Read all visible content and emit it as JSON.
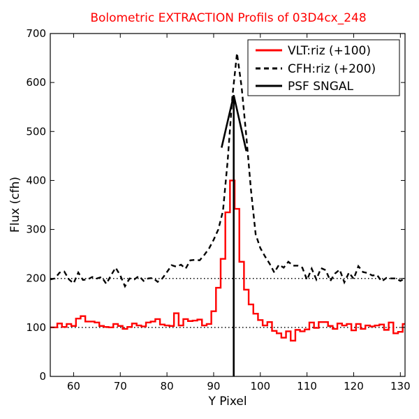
{
  "chart_data": {
    "type": "line",
    "title": "Bolometric EXTRACTION Profils of 03D4cx_248",
    "xlabel": "Y Pixel",
    "ylabel": "Flux (cfh)",
    "xlim": [
      55,
      131
    ],
    "ylim": [
      0,
      700
    ],
    "xticks": [
      60,
      70,
      80,
      90,
      100,
      110,
      120,
      130
    ],
    "yticks": [
      0,
      100,
      200,
      300,
      400,
      500,
      600,
      700
    ],
    "grid": false,
    "legend_position": "top-right",
    "reference_lines": [
      {
        "y": 100,
        "style": "dotted",
        "color": "#000000"
      },
      {
        "y": 200,
        "style": "dotted",
        "color": "#000000"
      }
    ],
    "series": [
      {
        "name": "VLT:riz (+100)",
        "color": "#ff0000",
        "style": "steps",
        "x": [
          55,
          56,
          57,
          58,
          59,
          60,
          61,
          62,
          63,
          64,
          65,
          66,
          67,
          68,
          69,
          70,
          71,
          72,
          73,
          74,
          75,
          76,
          77,
          78,
          79,
          80,
          81,
          82,
          83,
          84,
          85,
          86,
          87,
          88,
          89,
          90,
          91,
          92,
          93,
          94,
          95,
          96,
          97,
          98,
          99,
          100,
          101,
          102,
          103,
          104,
          105,
          106,
          107,
          108,
          109,
          110,
          111,
          112,
          113,
          114,
          115,
          116,
          117,
          118,
          119,
          120,
          121,
          122,
          123,
          124,
          125,
          126,
          127,
          128,
          129,
          130,
          131
        ],
        "y": [
          100,
          100,
          108,
          101,
          107,
          103,
          118,
          123,
          112,
          112,
          110,
          103,
          101,
          100,
          107,
          103,
          97,
          101,
          108,
          104,
          102,
          110,
          112,
          117,
          106,
          104,
          103,
          129,
          104,
          117,
          113,
          114,
          116,
          104,
          107,
          133,
          181,
          240,
          335,
          400,
          342,
          234,
          177,
          147,
          128,
          115,
          104,
          111,
          93,
          88,
          79,
          92,
          73,
          95,
          92,
          96,
          110,
          99,
          111,
          111,
          103,
          97,
          108,
          104,
          107,
          94,
          107,
          97,
          104,
          102,
          104,
          106,
          95,
          110,
          88,
          91,
          107
        ]
      },
      {
        "name": "CFH:riz (+200)",
        "color": "#000000",
        "style": "dashed",
        "x": [
          55,
          56,
          57,
          58,
          59,
          60,
          61,
          62,
          63,
          64,
          65,
          66,
          67,
          68,
          69,
          70,
          71,
          72,
          73,
          74,
          75,
          76,
          77,
          78,
          79,
          80,
          81,
          82,
          83,
          84,
          85,
          86,
          87,
          88,
          89,
          90,
          91,
          92,
          93,
          94,
          95,
          96,
          97,
          98,
          99,
          100,
          101,
          102,
          103,
          104,
          105,
          106,
          107,
          108,
          109,
          110,
          111,
          112,
          113,
          114,
          115,
          116,
          117,
          118,
          119,
          120,
          121,
          122,
          123,
          124,
          125,
          126,
          127,
          128,
          129,
          130,
          131
        ],
        "y": [
          198,
          200,
          212,
          214,
          198,
          190,
          212,
          197,
          198,
          203,
          200,
          203,
          189,
          206,
          222,
          206,
          184,
          200,
          198,
          205,
          195,
          200,
          201,
          193,
          200,
          213,
          227,
          224,
          228,
          220,
          237,
          238,
          237,
          248,
          261,
          279,
          300,
          338,
          440,
          570,
          660,
          590,
          490,
          380,
          290,
          262,
          245,
          230,
          212,
          228,
          222,
          234,
          226,
          226,
          222,
          197,
          220,
          198,
          221,
          217,
          195,
          210,
          218,
          192,
          212,
          199,
          225,
          213,
          211,
          206,
          207,
          194,
          201,
          200,
          200,
          195,
          200
        ]
      },
      {
        "name": "PSF SNGAL",
        "color": "#000000",
        "style": "solid",
        "vertical_x": 94.3,
        "x": [
          91.7,
          94.3,
          97.0
        ],
        "y": [
          467,
          574,
          460
        ]
      }
    ]
  }
}
